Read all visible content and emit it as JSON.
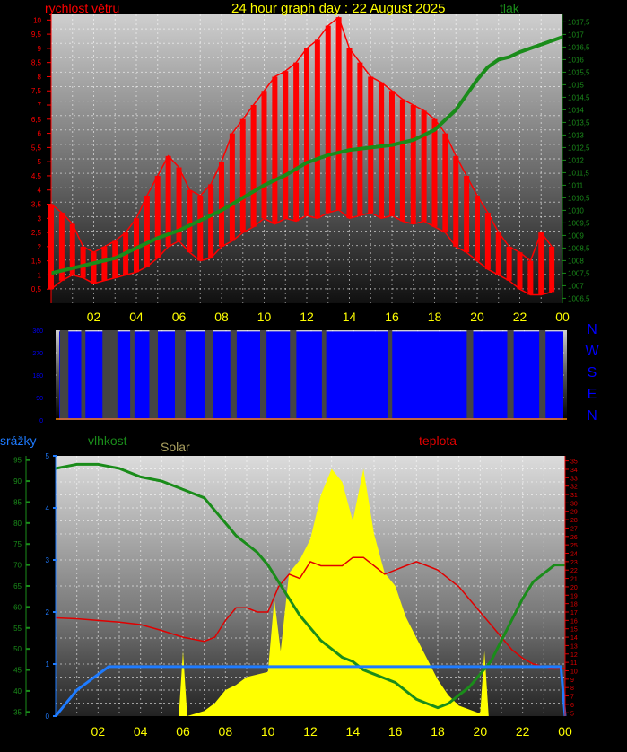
{
  "title": "24 hour graph day : 22 August 2025",
  "colors": {
    "wind": "#ff0000",
    "pressure": "#1a8c1a",
    "direction": "#0000ff",
    "humidity": "#1a8c1a",
    "temperature": "#e00000",
    "solar": "#ffff00",
    "rain": "#1e7bff",
    "hour_labels": "#ffff00",
    "compass": "#0000ff"
  },
  "x_ticks": [
    "02",
    "04",
    "06",
    "08",
    "10",
    "12",
    "14",
    "16",
    "18",
    "20",
    "22",
    "00"
  ],
  "chart_data": [
    {
      "type": "line",
      "x_unit": "hours",
      "x_range": [
        0,
        24
      ],
      "series": [
        {
          "name": "rychlost větru",
          "axis": "left",
          "ylim": [
            0,
            10.2
          ],
          "x": [
            0,
            0.5,
            1,
            1.5,
            2,
            2.5,
            3,
            3.5,
            4,
            4.5,
            5,
            5.5,
            6,
            6.5,
            7,
            7.5,
            8,
            8.5,
            9,
            9.5,
            10,
            10.5,
            11,
            11.5,
            12,
            12.5,
            13,
            13.5,
            14,
            14.5,
            15,
            15.5,
            16,
            16.5,
            17,
            17.5,
            18,
            18.5,
            19,
            19.5,
            20,
            20.5,
            21,
            21.5,
            22,
            22.5,
            23,
            23.5
          ],
          "low": [
            0.5,
            0.8,
            1.0,
            0.9,
            0.7,
            0.8,
            0.9,
            1.0,
            1.1,
            1.3,
            1.6,
            2.0,
            2.2,
            1.8,
            1.5,
            1.6,
            2.0,
            2.2,
            2.5,
            2.7,
            3.0,
            2.8,
            3.0,
            2.9,
            3.1,
            3.0,
            3.2,
            3.3,
            3.0,
            3.1,
            3.2,
            3.0,
            3.1,
            2.9,
            2.8,
            2.9,
            2.7,
            2.5,
            2.0,
            1.8,
            1.5,
            1.2,
            1.0,
            0.8,
            0.5,
            0.3,
            0.3,
            0.4
          ],
          "high": [
            3.5,
            3.2,
            2.8,
            2.0,
            1.8,
            2.0,
            2.2,
            2.5,
            3.0,
            3.8,
            4.5,
            5.2,
            4.8,
            4.0,
            3.8,
            4.2,
            5.0,
            6.0,
            6.5,
            7.0,
            7.5,
            8.0,
            8.2,
            8.5,
            9.0,
            9.3,
            9.8,
            10.1,
            9.0,
            8.5,
            8.0,
            7.8,
            7.5,
            7.2,
            7.0,
            6.8,
            6.5,
            6.0,
            5.2,
            4.5,
            3.8,
            3.2,
            2.5,
            2.0,
            1.8,
            1.5,
            2.5,
            2.0
          ]
        },
        {
          "name": "tlak",
          "axis": "right",
          "ylim": [
            1006.3,
            1017.8
          ],
          "x": [
            0,
            1,
            2,
            3,
            4,
            5,
            6,
            7,
            8,
            9,
            10,
            11,
            12,
            13,
            14,
            15,
            16,
            17,
            18,
            18.5,
            19,
            19.5,
            20,
            20.5,
            21,
            21.5,
            22,
            23,
            24
          ],
          "values": [
            1007.5,
            1007.7,
            1007.9,
            1008.1,
            1008.5,
            1008.9,
            1009.2,
            1009.6,
            1010.0,
            1010.5,
            1011.0,
            1011.4,
            1011.9,
            1012.2,
            1012.4,
            1012.5,
            1012.6,
            1012.8,
            1013.2,
            1013.6,
            1014.0,
            1014.6,
            1015.2,
            1015.7,
            1016.0,
            1016.1,
            1016.3,
            1016.6,
            1016.9
          ]
        }
      ],
      "left_ticks": [
        "0,5",
        "1",
        "1,5",
        "2",
        "2,5",
        "3",
        "3,5",
        "4",
        "4,5",
        "5",
        "5,5",
        "6",
        "6,5",
        "7",
        "7,5",
        "8",
        "8,5",
        "9",
        "9,5",
        "10"
      ],
      "right_ticks": [
        "1006,5",
        "1007",
        "1007,5",
        "1008",
        "1008,5",
        "1009",
        "1009,5",
        "1010",
        "1010,5",
        "1011",
        "1011,5",
        "1012",
        "1012,5",
        "1013",
        "1013,5",
        "1014",
        "1014,5",
        "1015",
        "1015,5",
        "1016",
        "1016,5",
        "1017",
        "1017,5"
      ],
      "left_label": "rychlost větru",
      "right_label": "tlak",
      "grid": true
    },
    {
      "type": "line",
      "x_range": [
        0,
        24
      ],
      "series": [
        {
          "name": "direction",
          "axis": "left",
          "ylim": [
            0,
            360
          ],
          "low_segments": [
            [
              0.2,
              0.6
            ],
            [
              1.2,
              1.4
            ],
            [
              2.2,
              2.9
            ],
            [
              3.5,
              3.7
            ],
            [
              4.4,
              4.8
            ],
            [
              5.6,
              6.1
            ],
            [
              7.0,
              7.4
            ],
            [
              8.2,
              8.5
            ],
            [
              9.6,
              9.9
            ],
            [
              11.0,
              11.3
            ],
            [
              12.5,
              12.7
            ],
            [
              15.6,
              15.8
            ],
            [
              19.3,
              19.6
            ],
            [
              21.2,
              21.5
            ],
            [
              22.7,
              23.0
            ]
          ]
        }
      ],
      "left_ticks": [
        "0",
        "90",
        "180",
        "270",
        "360"
      ],
      "compass": [
        "N",
        "W",
        "S",
        "E",
        "N"
      ],
      "grid": true
    },
    {
      "type": "line",
      "x_range": [
        0,
        24
      ],
      "series": [
        {
          "name": "vlhkost",
          "axis": "far-left",
          "ylim": [
            34,
            96
          ],
          "x": [
            0,
            0.5,
            1,
            1.5,
            2,
            2.5,
            3,
            4,
            5,
            6,
            7,
            7.5,
            8,
            8.5,
            9,
            9.5,
            10,
            10.5,
            11,
            11.5,
            12,
            12.5,
            13,
            13.5,
            14,
            14.5,
            15,
            15.5,
            16,
            16.5,
            17,
            17.5,
            18,
            18.5,
            19,
            19.5,
            20,
            20.5,
            21,
            21.5,
            22,
            22.5,
            23,
            23.5,
            24
          ],
          "values": [
            93,
            93.5,
            94,
            94,
            94,
            93.5,
            93,
            91,
            90,
            88,
            86,
            83,
            80,
            77,
            75,
            73,
            70,
            66,
            62,
            58,
            55,
            52,
            50,
            48,
            47,
            45,
            44,
            43,
            42,
            40,
            38,
            37,
            36,
            37,
            39,
            41,
            44,
            47,
            52,
            57,
            62,
            66,
            68,
            70,
            70
          ]
        },
        {
          "name": "teplota",
          "axis": "right",
          "ylim": [
            4.6,
            35.6
          ],
          "x": [
            0,
            1,
            2,
            3,
            4,
            5,
            6,
            7,
            7.5,
            8,
            8.5,
            9,
            9.5,
            10,
            10.5,
            11,
            11.5,
            12,
            12.5,
            13,
            13.5,
            14,
            14.5,
            15,
            15.5,
            16,
            16.5,
            17,
            17.5,
            18,
            18.5,
            19,
            19.5,
            20,
            20.5,
            21,
            21.5,
            22,
            22.5,
            23,
            23.5,
            24
          ],
          "values": [
            16.3,
            16.2,
            16.0,
            15.8,
            15.5,
            14.8,
            14.0,
            13.5,
            14.0,
            16.0,
            17.5,
            17.5,
            17.0,
            17.0,
            20.0,
            21.5,
            21.0,
            23.0,
            22.5,
            22.5,
            22.5,
            23.5,
            23.5,
            22.5,
            21.5,
            22.0,
            22.5,
            23.0,
            22.5,
            22.0,
            21.0,
            20.0,
            18.5,
            17.0,
            15.5,
            14.0,
            12.5,
            11.5,
            10.8,
            10.5,
            10.2,
            10.3
          ]
        },
        {
          "name": "Solar",
          "axis": "left",
          "ylim": [
            0,
            100
          ],
          "x": [
            0,
            5.8,
            6,
            6.2,
            7,
            7.5,
            8,
            8.5,
            9,
            9.5,
            10,
            10.3,
            10.6,
            11,
            11.5,
            12,
            12.5,
            13,
            13.5,
            14,
            14.5,
            15,
            15.5,
            16,
            16.5,
            17,
            17.5,
            18,
            18.5,
            19,
            20,
            20.2,
            20.4,
            24
          ],
          "values": [
            0,
            0,
            25,
            0,
            2,
            5,
            10,
            12,
            15,
            16,
            17,
            45,
            25,
            55,
            60,
            68,
            85,
            95,
            90,
            75,
            95,
            70,
            55,
            50,
            38,
            30,
            22,
            14,
            8,
            4,
            1,
            25,
            0,
            0
          ]
        },
        {
          "name": "srážky",
          "axis": "left",
          "ylim": [
            0,
            100
          ],
          "x": [
            0,
            0.3,
            0.6,
            1,
            1.5,
            2,
            2.5,
            3,
            4,
            6,
            8,
            10,
            12,
            14,
            16,
            18,
            20,
            22,
            23.8,
            24
          ],
          "values": [
            0,
            3,
            6,
            10,
            13,
            16,
            19,
            19,
            19,
            19,
            19,
            19,
            19,
            19,
            19,
            19,
            19,
            19,
            19,
            0
          ]
        }
      ],
      "humidity_ticks": [
        "35",
        "40",
        "45",
        "50",
        "55",
        "60",
        "65",
        "70",
        "75",
        "80",
        "85",
        "90",
        "95"
      ],
      "temp_ticks": [
        "5",
        "6",
        "7",
        "8",
        "9",
        "10",
        "11",
        "12",
        "13",
        "14",
        "15",
        "16",
        "17",
        "18",
        "19",
        "20",
        "21",
        "22",
        "23",
        "24",
        "25",
        "26",
        "27",
        "28",
        "29",
        "30",
        "31",
        "32",
        "33",
        "34",
        "35"
      ],
      "rain_ticks": [
        "0",
        "1",
        "2",
        "3",
        "4",
        "5"
      ],
      "labels": {
        "rain": "srážky",
        "humidity": "vlhkost",
        "solar": "Solar",
        "temperature": "teplota"
      },
      "grid": true
    }
  ]
}
